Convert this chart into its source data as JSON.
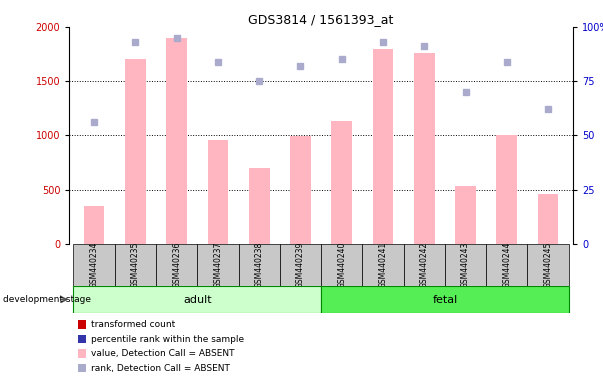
{
  "title": "GDS3814 / 1561393_at",
  "categories": [
    "GSM440234",
    "GSM440235",
    "GSM440236",
    "GSM440237",
    "GSM440238",
    "GSM440239",
    "GSM440240",
    "GSM440241",
    "GSM440242",
    "GSM440243",
    "GSM440244",
    "GSM440245"
  ],
  "bar_values": [
    350,
    1700,
    1900,
    960,
    700,
    990,
    1130,
    1800,
    1760,
    530,
    1000,
    460
  ],
  "bar_color_absent": "#ffb6c1",
  "rank_values": [
    56,
    93,
    95,
    84,
    75,
    82,
    85,
    93,
    91,
    70,
    84,
    62
  ],
  "rank_color_absent": "#aaaacc",
  "ylim_left": [
    0,
    2000
  ],
  "ylim_right": [
    0,
    100
  ],
  "yticks_left": [
    0,
    500,
    1000,
    1500,
    2000
  ],
  "yticks_right": [
    0,
    25,
    50,
    75,
    100
  ],
  "ytick_labels_right": [
    "0",
    "25",
    "50",
    "75",
    "100%"
  ],
  "ytick_labels_left": [
    "0",
    "500",
    "1000",
    "1500",
    "2000"
  ],
  "adult_samples": 6,
  "fetal_samples": 6,
  "adult_label": "adult",
  "fetal_label": "fetal",
  "adult_color": "#ccffcc",
  "fetal_color": "#55ee55",
  "stage_label": "development stage",
  "legend_entries": [
    {
      "label": "transformed count",
      "color": "#cc0000"
    },
    {
      "label": "percentile rank within the sample",
      "color": "#3333aa"
    },
    {
      "label": "value, Detection Call = ABSENT",
      "color": "#ffb6c1"
    },
    {
      "label": "rank, Detection Call = ABSENT",
      "color": "#aaaacc"
    }
  ],
  "bar_width": 0.5,
  "marker_size": 5,
  "left_axis_color": "#cc0000",
  "right_axis_color": "#0000cc",
  "cell_color": "#c8c8c8",
  "right_label_100": "100%",
  "right_label_0": "0"
}
